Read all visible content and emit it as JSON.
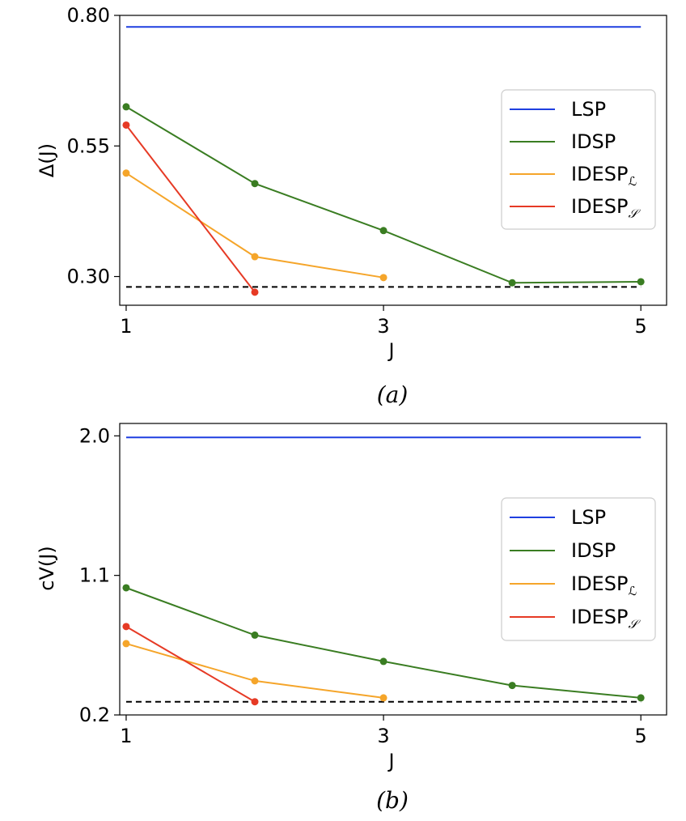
{
  "chart_data": [
    {
      "type": "line",
      "panel": "a",
      "caption": "(a)",
      "xlabel": "J",
      "ylabel": "Δ(J)",
      "x_ticks": [
        "1",
        "3",
        "5"
      ],
      "y_ticks": [
        "0.30",
        "0.55",
        "0.80"
      ],
      "xlim": [
        0.95,
        5.2
      ],
      "ylim": [
        0.245,
        0.8
      ],
      "y_tick_values": [
        0.3,
        0.55,
        0.8
      ],
      "x_tick_values": [
        1,
        3,
        5
      ],
      "reference_line": {
        "name": "baseline",
        "color": "#000000",
        "dashed": true,
        "x": [
          1,
          5
        ],
        "y": [
          0.28,
          0.28
        ]
      },
      "series": [
        {
          "name": "LSP",
          "color": "#1f3fe0",
          "markers": false,
          "x": [
            1,
            5
          ],
          "y": [
            0.778,
            0.778
          ]
        },
        {
          "name": "IDSP",
          "color": "#3a7d22",
          "markers": true,
          "x": [
            1,
            2,
            3,
            4,
            5
          ],
          "y": [
            0.625,
            0.478,
            0.388,
            0.288,
            0.29
          ]
        },
        {
          "name": "IDESPℒ",
          "color": "#f5a52a",
          "markers": true,
          "x": [
            1,
            2,
            3
          ],
          "y": [
            0.498,
            0.338,
            0.298
          ]
        },
        {
          "name": "IDESP𝒮",
          "color": "#e63a25",
          "markers": true,
          "x": [
            1,
            2
          ],
          "y": [
            0.59,
            0.27
          ]
        }
      ],
      "legend": [
        {
          "label": "LSP",
          "base": "LSP",
          "sub": ""
        },
        {
          "label": "IDSP",
          "base": "IDSP",
          "sub": ""
        },
        {
          "label": "IDESPℒ",
          "base": "IDESP",
          "sub": "ℒ"
        },
        {
          "label": "IDESP𝒮",
          "base": "IDESP",
          "sub": "𝒮"
        }
      ],
      "legend_position": "center-right"
    },
    {
      "type": "line",
      "panel": "b",
      "caption": "(b)",
      "xlabel": "J",
      "ylabel": "cV(J)",
      "x_ticks": [
        "1",
        "3",
        "5"
      ],
      "y_ticks": [
        "0.2",
        "1.1",
        "2.0"
      ],
      "xlim": [
        0.95,
        5.2
      ],
      "ylim": [
        0.2,
        2.08
      ],
      "y_tick_values": [
        0.2,
        1.1,
        2.0
      ],
      "x_tick_values": [
        1,
        3,
        5
      ],
      "reference_line": {
        "name": "baseline",
        "color": "#000000",
        "dashed": true,
        "x": [
          1,
          5
        ],
        "y": [
          0.285,
          0.285
        ]
      },
      "series": [
        {
          "name": "LSP",
          "color": "#1f3fe0",
          "markers": false,
          "x": [
            1,
            5
          ],
          "y": [
            1.99,
            1.99
          ]
        },
        {
          "name": "IDSP",
          "color": "#3a7d22",
          "markers": true,
          "x": [
            1,
            2,
            3,
            4,
            5
          ],
          "y": [
            1.02,
            0.715,
            0.545,
            0.39,
            0.31
          ]
        },
        {
          "name": "IDESPℒ",
          "color": "#f5a52a",
          "markers": true,
          "x": [
            1,
            2,
            3
          ],
          "y": [
            0.66,
            0.42,
            0.31
          ]
        },
        {
          "name": "IDESP𝒮",
          "color": "#e63a25",
          "markers": true,
          "x": [
            1,
            2
          ],
          "y": [
            0.77,
            0.285
          ]
        }
      ],
      "legend": [
        {
          "label": "LSP",
          "base": "LSP",
          "sub": ""
        },
        {
          "label": "IDSP",
          "base": "IDSP",
          "sub": ""
        },
        {
          "label": "IDESPℒ",
          "base": "IDESP",
          "sub": "ℒ"
        },
        {
          "label": "IDESP𝒮",
          "base": "IDESP",
          "sub": "𝒮"
        }
      ],
      "legend_position": "center-right"
    }
  ]
}
